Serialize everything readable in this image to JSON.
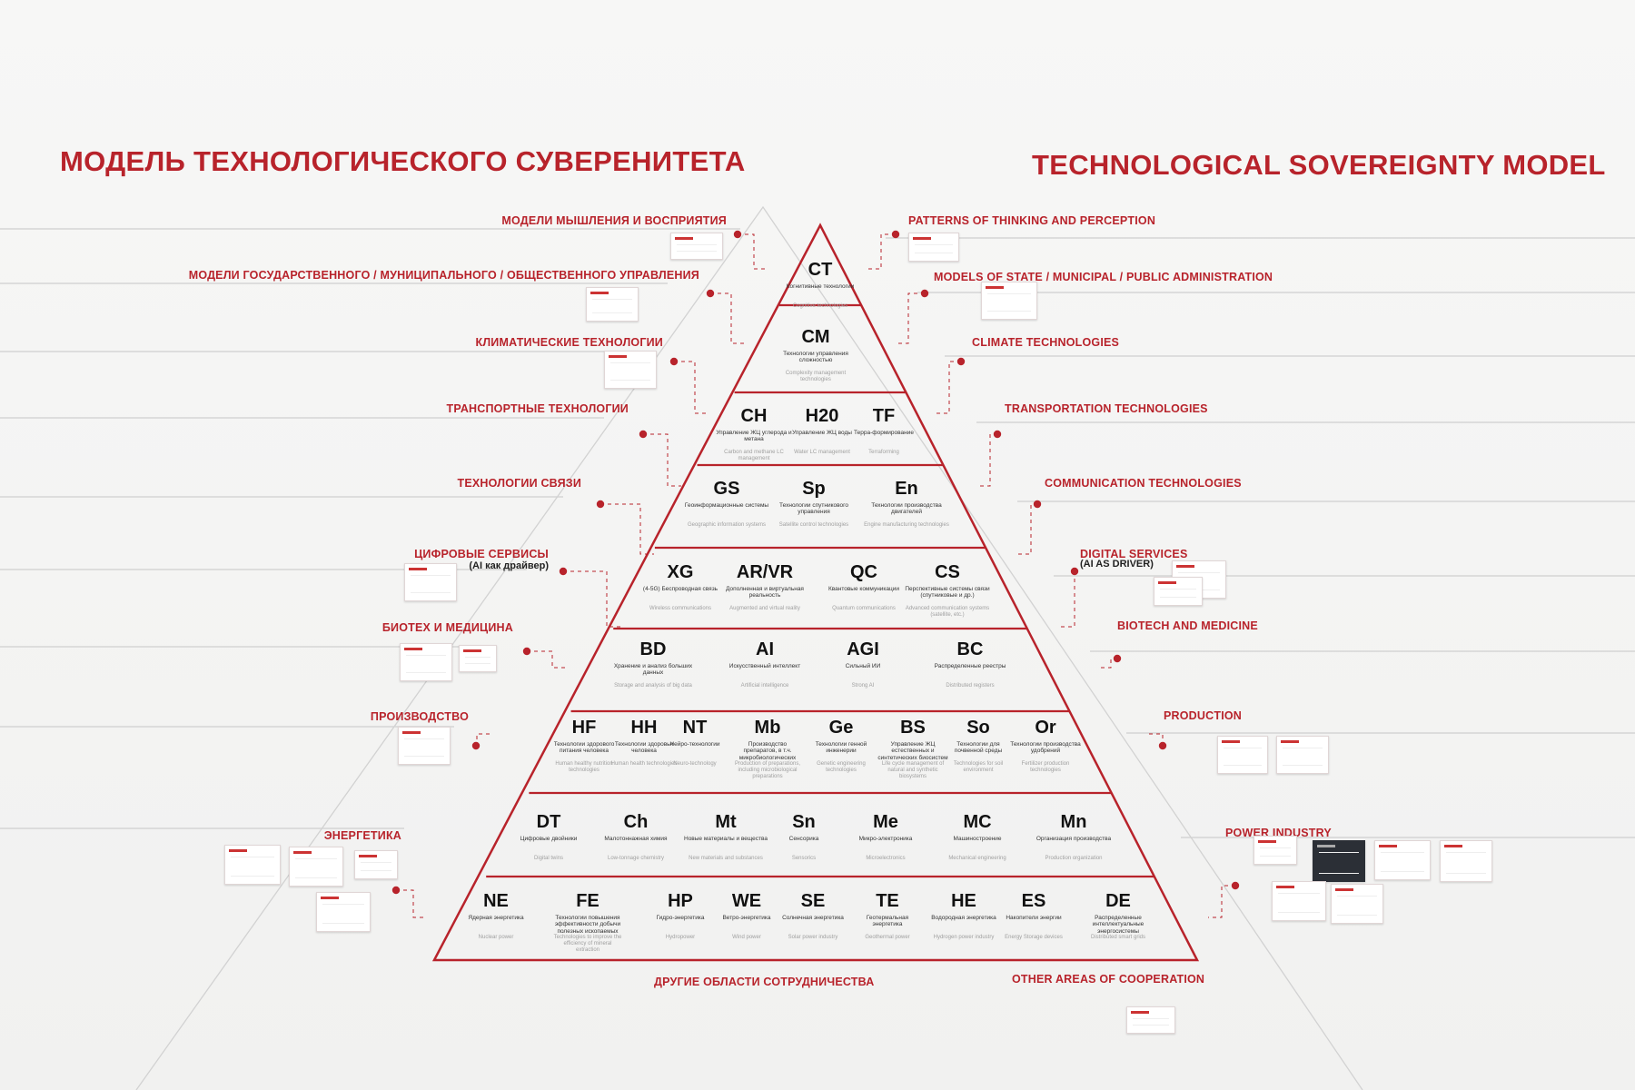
{
  "title_ru": "МОДЕЛЬ ТЕХНОЛОГИЧЕСКОГО СУВЕРЕНИТЕТА",
  "title_en": "TECHNOLOGICAL SOVEREIGNTY MODEL",
  "accent_color": "#b8232b",
  "left_labels": [
    "МОДЕЛИ МЫШЛЕНИЯ И ВОСПРИЯТИЯ",
    "МОДЕЛИ ГОСУДАРСТВЕННОГО / МУНИЦИПАЛЬНОГО / ОБЩЕСТВЕННОГО УПРАВЛЕНИЯ",
    "КЛИМАТИЧЕСКИЕ ТЕХНОЛОГИИ",
    "ТРАНСПОРТНЫЕ ТЕХНОЛОГИИ",
    "ТЕХНОЛОГИИ СВЯЗИ",
    "ЦИФРОВЫЕ СЕРВИСЫ",
    "БИОТЕХ И МЕДИЦИНА",
    "ПРОИЗВОДСТВО",
    "ЭНЕРГЕТИКА",
    "ДРУГИЕ ОБЛАСТИ СОТРУДНИЧЕСТВА"
  ],
  "left_sub": "(AI как драйвер)",
  "right_labels": [
    "PATTERNS OF THINKING AND PERCEPTION",
    "MODELS OF STATE / MUNICIPAL / PUBLIC ADMINISTRATION",
    "CLIMATE TECHNOLOGIES",
    "TRANSPORTATION TECHNOLOGIES",
    "COMMUNICATION TECHNOLOGIES",
    "DIGITAL SERVICES",
    "BIOTECH AND MEDICINE",
    "PRODUCTION",
    "POWER INDUSTRY",
    "OTHER AREAS OF COOPERATION"
  ],
  "right_sub": "(AI AS DRIVER)",
  "tiers": [
    [
      {
        "code": "CT",
        "ru": "Когнитивные технологии",
        "en": "Cognitive technologies"
      }
    ],
    [
      {
        "code": "CM",
        "ru": "Технологии управления сложностью",
        "en": "Complexity management technologies"
      }
    ],
    [
      {
        "code": "CH",
        "ru": "Управление ЖЦ углерода и метана",
        "en": "Carbon and methane LC management"
      },
      {
        "code": "H20",
        "ru": "Управление ЖЦ воды",
        "en": "Water LC management"
      },
      {
        "code": "TF",
        "ru": "Терра-формирование",
        "en": "Terraforming"
      }
    ],
    [
      {
        "code": "GS",
        "ru": "Геоинформационные системы",
        "en": "Geographic information systems"
      },
      {
        "code": "Sp",
        "ru": "Технологии спутникового управления",
        "en": "Satellite control technologies"
      },
      {
        "code": "En",
        "ru": "Технологии производства двигателей",
        "en": "Engine manufacturing technologies"
      }
    ],
    [
      {
        "code": "XG",
        "ru": "(4-5G) Беспроводная связь",
        "en": "Wireless communications"
      },
      {
        "code": "AR/VR",
        "ru": "Дополненная и виртуальная реальность",
        "en": "Augmented and virtual reality"
      },
      {
        "code": "QC",
        "ru": "Квантовые коммуникации",
        "en": "Quantum communications"
      },
      {
        "code": "CS",
        "ru": "Перспективные системы связи (спутниковые и др.)",
        "en": "Advanced communication systems (satellite, etc.)"
      }
    ],
    [
      {
        "code": "BD",
        "ru": "Хранение и анализ больших данных",
        "en": "Storage and analysis of big data"
      },
      {
        "code": "AI",
        "ru": "Искусственный интеллект",
        "en": "Artificial intelligence"
      },
      {
        "code": "AGI",
        "ru": "Сильный ИИ",
        "en": "Strong AI"
      },
      {
        "code": "BC",
        "ru": "Распределенные реестры",
        "en": "Distributed registers"
      }
    ],
    [
      {
        "code": "HF",
        "ru": "Технологии здорового питания человека",
        "en": "Human healthy nutrition technologies"
      },
      {
        "code": "HH",
        "ru": "Технологии здоровья человека",
        "en": "Human health technologies"
      },
      {
        "code": "NT",
        "ru": "Нейро-технологии",
        "en": "Neuro-technology"
      },
      {
        "code": "Mb",
        "ru": "Производство препаратов, в т.ч. микробиологических",
        "en": "Production of preparations, including microbiological preparations"
      },
      {
        "code": "Ge",
        "ru": "Технологии генной инженерии",
        "en": "Genetic engineering technologies"
      },
      {
        "code": "BS",
        "ru": "Управление ЖЦ естественных и синтетических биосистем",
        "en": "Life cycle management of natural and synthetic biosystems"
      },
      {
        "code": "So",
        "ru": "Технологии для почвенной среды",
        "en": "Technologies for soil environment"
      },
      {
        "code": "Or",
        "ru": "Технологии производства удобрений",
        "en": "Fertilizer production technologies"
      }
    ],
    [
      {
        "code": "DT",
        "ru": "Цифровые двойники",
        "en": "Digital twins"
      },
      {
        "code": "Ch",
        "ru": "Малотоннажная химия",
        "en": "Low-tonnage chemistry"
      },
      {
        "code": "Mt",
        "ru": "Новые материалы и вещества",
        "en": "New materials and substances"
      },
      {
        "code": "Sn",
        "ru": "Сенсорика",
        "en": "Sensorics"
      },
      {
        "code": "Me",
        "ru": "Микро-электроника",
        "en": "Microelectronics"
      },
      {
        "code": "MC",
        "ru": "Машиностроение",
        "en": "Mechanical engineering"
      },
      {
        "code": "Mn",
        "ru": "Организация производства",
        "en": "Production organization"
      }
    ],
    [
      {
        "code": "NE",
        "ru": "Ядерная энергетика",
        "en": "Nuclear power"
      },
      {
        "code": "FE",
        "ru": "Технологии повышения эффективности добычи полезных ископаемых",
        "en": "Technologies to improve the efficiency of mineral extraction"
      },
      {
        "code": "HP",
        "ru": "Гидро-энергетика",
        "en": "Hydropower"
      },
      {
        "code": "WE",
        "ru": "Ветро-энергетика",
        "en": "Wind power"
      },
      {
        "code": "SE",
        "ru": "Солнечная энергетика",
        "en": "Solar power industry"
      },
      {
        "code": "TE",
        "ru": "Геотермальная энергетика",
        "en": "Geothermal power"
      },
      {
        "code": "HE",
        "ru": "Водородная энергетика",
        "en": "Hydrogen power industry"
      },
      {
        "code": "ES",
        "ru": "Накопители энергии",
        "en": "Energy Storage devices"
      },
      {
        "code": "DE",
        "ru": "Распределенные интеллектуальные энергосистемы",
        "en": "Distributed smart grids"
      }
    ]
  ]
}
